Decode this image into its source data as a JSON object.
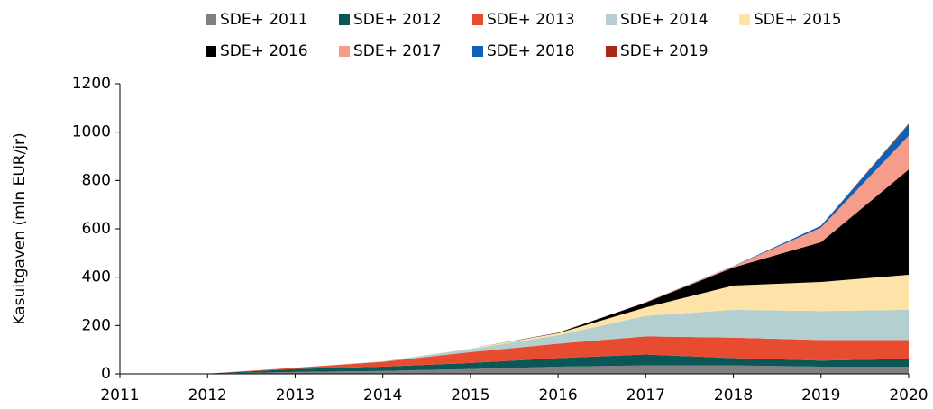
{
  "chart_data": {
    "type": "stacked_area",
    "y_label": "Kasuitgaven (mln EUR/jr)",
    "x": [
      2011,
      2012,
      2013,
      2014,
      2015,
      2016,
      2017,
      2018,
      2019,
      2020
    ],
    "xlim": [
      2011,
      2020
    ],
    "xticks": [
      2011,
      2012,
      2013,
      2014,
      2015,
      2016,
      2017,
      2018,
      2019,
      2020
    ],
    "ylim": [
      0,
      1200
    ],
    "yticks": [
      0,
      200,
      400,
      600,
      800,
      1000,
      1200
    ],
    "series": [
      {
        "name": "SDE+ 2011",
        "color": "#808080",
        "values": [
          0,
          1,
          8,
          12,
          20,
          30,
          35,
          35,
          30,
          30
        ]
      },
      {
        "name": "SDE+ 2012",
        "color": "#0b5656",
        "values": [
          0,
          0,
          12,
          18,
          25,
          35,
          45,
          30,
          25,
          32
        ]
      },
      {
        "name": "SDE+ 2013",
        "color": "#e84c30",
        "values": [
          0,
          0,
          5,
          20,
          45,
          60,
          75,
          85,
          85,
          78
        ]
      },
      {
        "name": "SDE+ 2014",
        "color": "#b3cfcf",
        "values": [
          0,
          0,
          0,
          2,
          12,
          35,
          85,
          115,
          120,
          125
        ]
      },
      {
        "name": "SDE+ 2015",
        "color": "#fde3a7",
        "values": [
          0,
          0,
          0,
          0,
          3,
          8,
          35,
          100,
          120,
          145
        ]
      },
      {
        "name": "SDE+ 2016",
        "color": "#000000",
        "values": [
          0,
          0,
          0,
          0,
          0,
          2,
          20,
          75,
          165,
          435
        ]
      },
      {
        "name": "SDE+ 2017",
        "color": "#f59c8a",
        "values": [
          0,
          0,
          0,
          0,
          0,
          0,
          2,
          5,
          60,
          140
        ]
      },
      {
        "name": "SDE+ 2018",
        "color": "#0d62b8",
        "values": [
          0,
          0,
          0,
          0,
          0,
          0,
          0,
          1,
          8,
          45
        ]
      },
      {
        "name": "SDE+ 2019",
        "color": "#a8291a",
        "values": [
          0,
          0,
          0,
          0,
          0,
          0,
          0,
          0,
          0,
          5
        ]
      }
    ]
  }
}
